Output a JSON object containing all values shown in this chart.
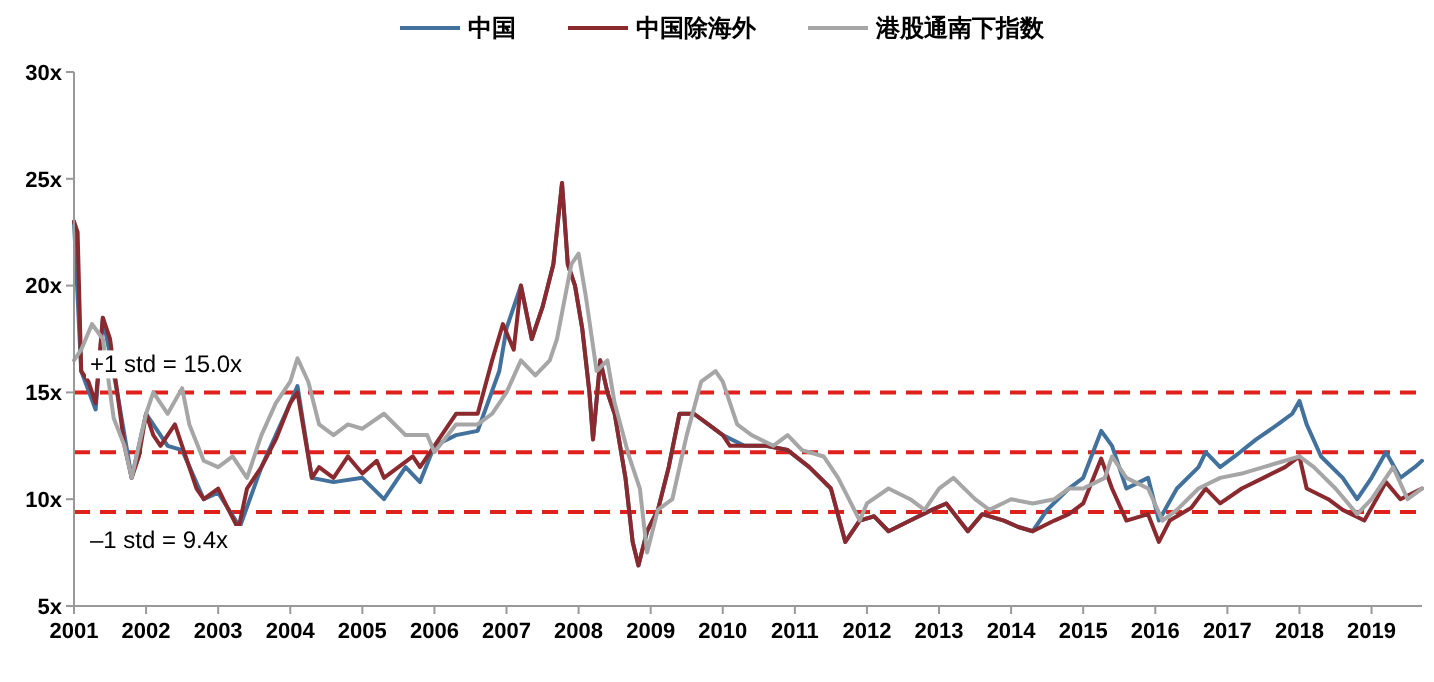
{
  "chart_data": {
    "type": "line",
    "legend": "top",
    "grid": false,
    "line_style": "solid",
    "marker": "none",
    "xlim": [
      2001,
      2019.7
    ],
    "xticks": [
      2001,
      2002,
      2003,
      2004,
      2005,
      2006,
      2007,
      2008,
      2009,
      2010,
      2011,
      2012,
      2013,
      2014,
      2015,
      2016,
      2017,
      2018,
      2019
    ],
    "ylim": [
      5,
      30
    ],
    "yticks": [
      {
        "value": 5,
        "label": "5x"
      },
      {
        "value": 10,
        "label": "10x"
      },
      {
        "value": 15,
        "label": "15x"
      },
      {
        "value": 20,
        "label": "20x"
      },
      {
        "value": 25,
        "label": "25x"
      },
      {
        "value": 30,
        "label": "30x"
      }
    ],
    "ref_lines": [
      {
        "axis": "y",
        "value": 15.0,
        "label": "+1 std = 15.0x",
        "color": "#e0201b",
        "line_style": "dashed"
      },
      {
        "axis": "y",
        "value": 12.2,
        "label": null,
        "color": "#e0201b",
        "line_style": "dashed"
      },
      {
        "axis": "y",
        "value": 9.4,
        "label": "–1 std = 9.4x",
        "color": "#e0201b",
        "line_style": "dashed"
      }
    ],
    "series": [
      {
        "name": "中国",
        "color": "#41719c",
        "x": [
          2001.0,
          2001.1,
          2001.3,
          2001.4,
          2001.6,
          2001.8,
          2002.0,
          2002.3,
          2002.5,
          2002.8,
          2003.0,
          2003.3,
          2003.6,
          2004.0,
          2004.1,
          2004.3,
          2004.6,
          2005.0,
          2005.3,
          2005.6,
          2005.8,
          2006.0,
          2006.3,
          2006.6,
          2006.9,
          2007.0,
          2007.2,
          2007.35,
          2007.5,
          2007.65,
          2007.77,
          2007.85,
          2007.95,
          2008.05,
          2008.15,
          2008.2,
          2008.3,
          2008.4,
          2008.5,
          2008.65,
          2008.75,
          2008.83,
          2008.95,
          2009.1,
          2009.25,
          2009.4,
          2009.6,
          2009.8,
          2010.0,
          2010.3,
          2010.6,
          2010.9,
          2011.2,
          2011.5,
          2011.7,
          2011.9,
          2012.1,
          2012.3,
          2012.6,
          2012.9,
          2013.1,
          2013.4,
          2013.6,
          2013.9,
          2014.1,
          2014.3,
          2014.5,
          2014.8,
          2015.0,
          2015.25,
          2015.4,
          2015.6,
          2015.9,
          2016.05,
          2016.3,
          2016.6,
          2016.7,
          2016.9,
          2017.1,
          2017.4,
          2017.7,
          2017.9,
          2018.0,
          2018.1,
          2018.3,
          2018.6,
          2018.8,
          2019.0,
          2019.2,
          2019.4,
          2019.6,
          2019.7
        ],
        "values": [
          23.0,
          16.0,
          14.2,
          18.5,
          15.0,
          11.0,
          14.0,
          12.5,
          12.3,
          10.0,
          10.3,
          8.7,
          11.5,
          14.5,
          15.3,
          11.0,
          10.8,
          11.0,
          10.0,
          11.5,
          10.8,
          12.5,
          13.0,
          13.2,
          16.0,
          18.0,
          20.0,
          17.5,
          19.0,
          21.0,
          24.8,
          21.0,
          20.0,
          18.0,
          15.0,
          12.8,
          16.5,
          15.0,
          14.0,
          11.0,
          8.0,
          6.9,
          8.5,
          9.5,
          11.5,
          14.0,
          14.0,
          13.5,
          13.0,
          12.5,
          12.5,
          12.3,
          11.5,
          10.5,
          8.0,
          9.0,
          9.2,
          8.5,
          9.0,
          9.5,
          9.8,
          8.5,
          9.3,
          9.0,
          8.7,
          8.5,
          9.5,
          10.5,
          11.0,
          13.2,
          12.5,
          10.5,
          11.0,
          9.0,
          10.5,
          11.5,
          12.2,
          11.5,
          12.0,
          12.8,
          13.5,
          14.0,
          14.6,
          13.5,
          12.0,
          11.0,
          10.0,
          11.0,
          12.2,
          11.0,
          11.5,
          11.8
        ]
      },
      {
        "name": "中国除海外",
        "color": "#8b2a2e",
        "x": [
          2001.0,
          2001.05,
          2001.1,
          2001.2,
          2001.3,
          2001.4,
          2001.5,
          2001.6,
          2001.7,
          2001.8,
          2001.9,
          2002.0,
          2002.1,
          2002.2,
          2002.4,
          2002.5,
          2002.7,
          2002.8,
          2003.0,
          2003.1,
          2003.28,
          2003.4,
          2003.6,
          2003.8,
          2004.0,
          2004.1,
          2004.2,
          2004.3,
          2004.4,
          2004.6,
          2004.8,
          2005.0,
          2005.2,
          2005.3,
          2005.5,
          2005.7,
          2005.8,
          2006.0,
          2006.3,
          2006.6,
          2006.8,
          2006.95,
          2007.1,
          2007.2,
          2007.35,
          2007.5,
          2007.65,
          2007.77,
          2007.85,
          2007.95,
          2008.05,
          2008.15,
          2008.2,
          2008.3,
          2008.4,
          2008.5,
          2008.65,
          2008.75,
          2008.83,
          2008.95,
          2009.1,
          2009.25,
          2009.4,
          2009.6,
          2009.8,
          2010.0,
          2010.1,
          2010.3,
          2010.6,
          2010.9,
          2011.2,
          2011.5,
          2011.7,
          2011.9,
          2012.1,
          2012.3,
          2012.6,
          2012.9,
          2013.1,
          2013.4,
          2013.6,
          2013.9,
          2014.1,
          2014.3,
          2014.6,
          2014.8,
          2015.0,
          2015.25,
          2015.4,
          2015.6,
          2015.9,
          2016.05,
          2016.2,
          2016.5,
          2016.7,
          2016.9,
          2017.2,
          2017.5,
          2017.8,
          2018.0,
          2018.1,
          2018.4,
          2018.6,
          2018.9,
          2019.2,
          2019.4,
          2019.7
        ],
        "values": [
          23.0,
          22.5,
          16.0,
          15.5,
          14.5,
          18.5,
          17.5,
          15.0,
          12.5,
          11.0,
          12.0,
          14.0,
          13.0,
          12.5,
          13.5,
          12.5,
          10.5,
          10.0,
          10.5,
          9.8,
          8.6,
          10.5,
          11.5,
          12.8,
          14.5,
          15.0,
          13.0,
          11.0,
          11.5,
          11.0,
          12.0,
          11.2,
          11.8,
          11.0,
          11.5,
          12.0,
          11.5,
          12.5,
          14.0,
          14.0,
          16.5,
          18.2,
          17.0,
          20.0,
          17.5,
          19.0,
          21.0,
          24.8,
          21.0,
          20.0,
          18.0,
          15.0,
          12.8,
          16.5,
          15.0,
          14.0,
          11.0,
          8.0,
          6.9,
          8.5,
          9.5,
          11.5,
          14.0,
          14.0,
          13.5,
          13.0,
          12.5,
          12.5,
          12.5,
          12.3,
          11.5,
          10.5,
          8.0,
          9.0,
          9.2,
          8.5,
          9.0,
          9.5,
          9.8,
          8.5,
          9.3,
          9.0,
          8.7,
          8.5,
          9.0,
          9.3,
          9.8,
          11.9,
          10.5,
          9.0,
          9.3,
          8.0,
          9.0,
          9.6,
          10.5,
          9.8,
          10.5,
          11.0,
          11.5,
          12.0,
          10.5,
          10.0,
          9.5,
          9.0,
          10.8,
          10.0,
          10.5
        ]
      },
      {
        "name": "港股通南下指数",
        "color": "#a6a6a6",
        "x": [
          2001.0,
          2001.1,
          2001.25,
          2001.4,
          2001.55,
          2001.7,
          2001.8,
          2002.0,
          2002.1,
          2002.3,
          2002.5,
          2002.6,
          2002.8,
          2003.0,
          2003.2,
          2003.4,
          2003.6,
          2003.8,
          2004.0,
          2004.1,
          2004.25,
          2004.4,
          2004.6,
          2004.8,
          2005.0,
          2005.3,
          2005.6,
          2005.9,
          2006.0,
          2006.3,
          2006.6,
          2006.8,
          2007.0,
          2007.2,
          2007.4,
          2007.6,
          2007.7,
          2007.9,
          2008.0,
          2008.1,
          2008.25,
          2008.4,
          2008.5,
          2008.7,
          2008.85,
          2008.95,
          2009.1,
          2009.3,
          2009.5,
          2009.7,
          2009.9,
          2010.0,
          2010.2,
          2010.4,
          2010.7,
          2010.9,
          2011.1,
          2011.4,
          2011.6,
          2011.75,
          2011.9,
          2012.0,
          2012.3,
          2012.6,
          2012.8,
          2013.0,
          2013.2,
          2013.5,
          2013.7,
          2014.0,
          2014.3,
          2014.6,
          2014.8,
          2015.0,
          2015.3,
          2015.4,
          2015.6,
          2015.9,
          2016.1,
          2016.3,
          2016.6,
          2016.9,
          2017.2,
          2017.5,
          2017.8,
          2018.0,
          2018.2,
          2018.5,
          2018.8,
          2019.0,
          2019.3,
          2019.5,
          2019.7
        ],
        "values": [
          16.5,
          17.0,
          18.2,
          17.5,
          13.8,
          12.5,
          11.0,
          14.0,
          15.0,
          14.0,
          15.2,
          13.5,
          11.8,
          11.5,
          12.0,
          11.0,
          13.0,
          14.5,
          15.5,
          16.6,
          15.5,
          13.5,
          13.0,
          13.5,
          13.3,
          14.0,
          13.0,
          13.0,
          12.2,
          13.5,
          13.5,
          14.0,
          15.0,
          16.5,
          15.8,
          16.5,
          17.5,
          21.0,
          21.5,
          19.5,
          16.0,
          16.5,
          14.5,
          12.0,
          10.5,
          7.5,
          9.5,
          10.0,
          13.0,
          15.5,
          16.0,
          15.5,
          13.5,
          13.0,
          12.5,
          13.0,
          12.3,
          12.0,
          11.0,
          10.0,
          9.0,
          9.8,
          10.5,
          10.0,
          9.5,
          10.5,
          11.0,
          10.0,
          9.5,
          10.0,
          9.8,
          10.0,
          10.5,
          10.5,
          11.0,
          12.0,
          11.0,
          10.5,
          9.0,
          9.5,
          10.5,
          11.0,
          11.2,
          11.5,
          11.8,
          12.0,
          11.5,
          10.5,
          9.3,
          10.0,
          11.5,
          10.0,
          10.5
        ]
      }
    ]
  }
}
